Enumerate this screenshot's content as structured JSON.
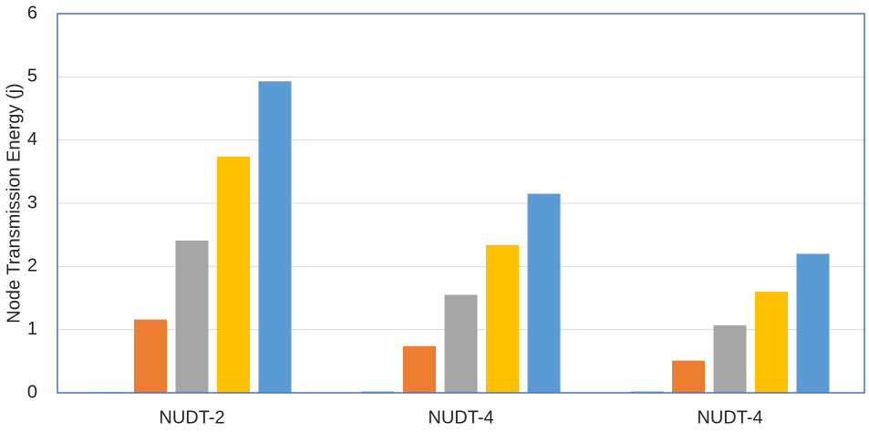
{
  "chart_data": {
    "type": "bar",
    "y_label": "Node Transmission Energy (j)",
    "categories": [
      "NUDT-2",
      "NUDT-4",
      "NUDT-4"
    ],
    "series": [
      {
        "color": "#5b9bd5",
        "values": [
          0.01,
          0.02,
          0.02
        ]
      },
      {
        "color": "#ed7d31",
        "values": [
          1.16,
          0.74,
          0.51
        ]
      },
      {
        "color": "#a5a5a5",
        "values": [
          2.41,
          1.55,
          1.07
        ]
      },
      {
        "color": "#ffc000",
        "values": [
          3.74,
          2.34,
          1.6
        ]
      },
      {
        "color": "#5b9bd5",
        "values": [
          4.93,
          3.15,
          2.2
        ]
      }
    ],
    "ylim": [
      0,
      6
    ],
    "yticks": [
      0,
      1,
      2,
      3,
      4,
      5,
      6
    ],
    "grid": true
  }
}
